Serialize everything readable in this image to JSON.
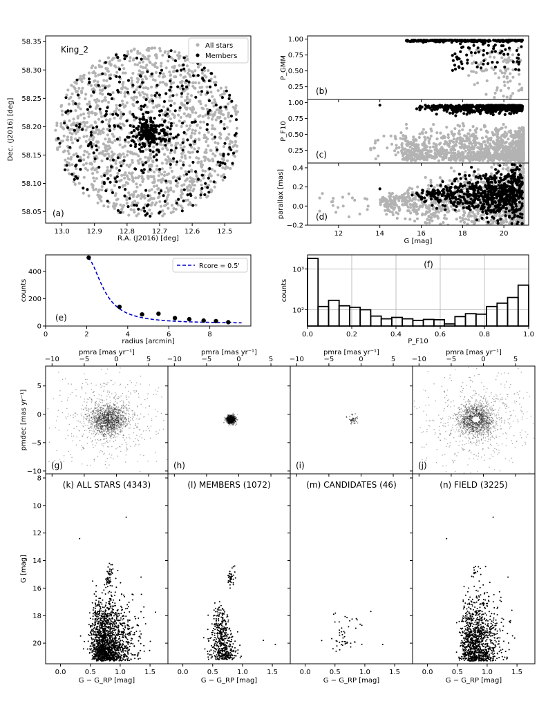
{
  "figure": {
    "cluster_name": "King_2"
  },
  "chart_data": [
    {
      "id": "a",
      "type": "scatter",
      "panel_label": "(a)",
      "title": "King_2",
      "xlabel": "R.A. (J2016) [deg]",
      "ylabel": "Dec. (J2016) [deg]",
      "xlim": [
        13.05,
        12.42
      ],
      "ylim": [
        58.03,
        58.36
      ],
      "xticks": [
        13.0,
        12.9,
        12.8,
        12.7,
        12.6,
        12.5
      ],
      "xtick_labels": [
        "13.0",
        "12.9",
        "12.8",
        "12.7",
        "12.6",
        "12.5"
      ],
      "yticks": [
        58.05,
        58.1,
        58.15,
        58.2,
        58.25,
        58.3,
        58.35
      ],
      "ytick_labels": [
        "58.05",
        "58.10",
        "58.15",
        "58.20",
        "58.25",
        "58.30",
        "58.35"
      ],
      "legend": [
        "All stars",
        "Members"
      ],
      "legend_position": "top-right",
      "field_center": [
        12.735,
        58.19
      ],
      "field_radius_deg": 0.15,
      "series": [
        {
          "name": "All stars",
          "color": "#b3b3b3",
          "count": 4343
        },
        {
          "name": "Members",
          "color": "#000000",
          "count": 1072
        }
      ]
    },
    {
      "id": "b",
      "type": "scatter",
      "panel_label": "(b)",
      "ylabel": "P_GMM",
      "xlim": [
        10.5,
        21.2
      ],
      "ylim": [
        0.05,
        1.05
      ],
      "yticks": [
        0.25,
        0.5,
        0.75,
        1.0
      ],
      "ytick_labels": [
        "0.25",
        "0.50",
        "0.75",
        "1.00"
      ]
    },
    {
      "id": "c",
      "type": "scatter",
      "panel_label": "(c)",
      "ylabel": "P_F10",
      "xlim": [
        10.5,
        21.2
      ],
      "ylim": [
        0.05,
        1.05
      ],
      "yticks": [
        0.25,
        0.5,
        0.75,
        1.0
      ],
      "ytick_labels": [
        "0.25",
        "0.50",
        "0.75",
        "1.00"
      ]
    },
    {
      "id": "d",
      "type": "scatter",
      "panel_label": "(d)",
      "ylabel": "parallax [mas]",
      "xlabel": "G [mag]",
      "xlim": [
        10.5,
        21.2
      ],
      "ylim": [
        -0.2,
        0.45
      ],
      "xticks": [
        12,
        14,
        16,
        18,
        20
      ],
      "xtick_labels": [
        "12",
        "14",
        "16",
        "18",
        "20"
      ],
      "yticks": [
        -0.2,
        0.0,
        0.2,
        0.4
      ],
      "ytick_labels": [
        "−0.2",
        "0.0",
        "0.2",
        "0.4"
      ]
    },
    {
      "id": "e",
      "type": "scatter",
      "panel_label": "(e)",
      "xlabel": "radius [arcmin]",
      "ylabel": "counts",
      "xlim": [
        0,
        10
      ],
      "ylim": [
        0,
        520
      ],
      "xticks": [
        0,
        2,
        4,
        6,
        8
      ],
      "xtick_labels": [
        "0",
        "2",
        "4",
        "6",
        "8"
      ],
      "yticks": [
        0,
        200,
        400
      ],
      "ytick_labels": [
        "0",
        "200",
        "400"
      ],
      "x": [
        2.1,
        3.6,
        4.7,
        5.5,
        6.3,
        7.0,
        7.7,
        8.3,
        8.9
      ],
      "y": [
        500,
        140,
        85,
        90,
        58,
        50,
        40,
        36,
        28
      ],
      "fit": {
        "label": "Rcore =   0.5'",
        "rcore": 0.5,
        "background": 18,
        "color": "#0000cc",
        "style": "dashed"
      },
      "legend_position": "top-right"
    },
    {
      "id": "f",
      "type": "bar",
      "panel_label": "(f)",
      "xlabel": "P_F10",
      "ylabel": "counts",
      "yscale": "log",
      "xlim": [
        0,
        1
      ],
      "ylim": [
        40,
        2200
      ],
      "xticks": [
        0.0,
        0.2,
        0.4,
        0.6,
        0.8,
        1.0
      ],
      "xtick_labels": [
        "0.0",
        "0.2",
        "0.4",
        "0.6",
        "0.8",
        "1.0"
      ],
      "ytick_labels": [
        "10²",
        "10³"
      ],
      "bin_width": 0.05,
      "values": [
        1800,
        120,
        170,
        125,
        115,
        100,
        70,
        60,
        65,
        60,
        55,
        58,
        57,
        45,
        68,
        80,
        78,
        120,
        145,
        200,
        400
      ],
      "grid": true
    },
    {
      "id": "g",
      "type": "scatter",
      "panel_label": "(g)",
      "stars": 4343,
      "spread": 1.9,
      "xlabel": "pmra [mas yr⁻¹]",
      "ylabel": "pmdec [mas yr⁻¹]",
      "xlim": [
        -11,
        8
      ],
      "ylim": [
        -10.5,
        8.5
      ],
      "center": [
        -1.2,
        -0.9
      ],
      "xticks": [
        -10,
        -5,
        0,
        5
      ],
      "xtick_labels": [
        "−10",
        "−5",
        "0",
        "5"
      ],
      "yticks": [
        -10,
        -5,
        0,
        5
      ],
      "ytick_labels": [
        "−10",
        "−5",
        "0",
        "5"
      ]
    },
    {
      "id": "h",
      "type": "scatter",
      "panel_label": "(h)",
      "stars": 1072,
      "spread": 0.35,
      "xlabel": "pmra [mas yr⁻¹]",
      "xlim": [
        -11,
        8
      ],
      "ylim": [
        -10.5,
        8.5
      ],
      "center": [
        -1.2,
        -0.9
      ],
      "xticks": [
        -10,
        -5,
        0,
        5
      ],
      "xtick_labels": [
        "−10",
        "−5",
        "0",
        "5"
      ]
    },
    {
      "id": "i",
      "type": "scatter",
      "panel_label": "(i)",
      "stars": 46,
      "spread": 0.4,
      "xlabel": "pmra [mas yr⁻¹]",
      "xlim": [
        -11,
        8
      ],
      "ylim": [
        -10.5,
        8.5
      ],
      "center": [
        -1.2,
        -0.9
      ],
      "xticks": [
        -10,
        -5,
        0,
        5
      ],
      "xtick_labels": [
        "−10",
        "−5",
        "0",
        "5"
      ]
    },
    {
      "id": "j",
      "type": "scatter",
      "panel_label": "(j)",
      "stars": 3225,
      "spread": 2.1,
      "hole": true,
      "xlabel": "pmra [mas yr⁻¹]",
      "xlim": [
        -11,
        8
      ],
      "ylim": [
        -10.5,
        8.5
      ],
      "center": [
        -1.2,
        -0.9
      ],
      "xticks": [
        -10,
        -5,
        0,
        5
      ],
      "xtick_labels": [
        "−10",
        "−5",
        "0",
        "5"
      ]
    },
    {
      "id": "k",
      "type": "scatter",
      "title": "(k) ALL STARS (4343)",
      "stars": 4343,
      "xlabel": "G − G_RP [mag]",
      "ylabel": "G [mag]",
      "xlim": [
        -0.25,
        1.8
      ],
      "ylim": [
        21.5,
        7.7
      ],
      "xticks": [
        0.0,
        0.5,
        1.0,
        1.5
      ],
      "xtick_labels": [
        "0.0",
        "0.5",
        "1.0",
        "1.5"
      ],
      "yticks": [
        8,
        10,
        12,
        14,
        16,
        18,
        20
      ],
      "ytick_labels": [
        "8",
        "10",
        "12",
        "14",
        "16",
        "18",
        "20"
      ]
    },
    {
      "id": "l",
      "type": "scatter",
      "title": "(l) MEMBERS (1072)",
      "stars": 1072,
      "xlabel": "G − G_RP [mag]",
      "xlim": [
        -0.25,
        1.8
      ],
      "ylim": [
        21.5,
        7.7
      ],
      "xticks": [
        0.0,
        0.5,
        1.0,
        1.5
      ],
      "xtick_labels": [
        "0.0",
        "0.5",
        "1.0",
        "1.5"
      ]
    },
    {
      "id": "m",
      "type": "scatter",
      "title": "(m) CANDIDATES (46)",
      "stars": 46,
      "xlabel": "G − G_RP [mag]",
      "xlim": [
        -0.25,
        1.8
      ],
      "ylim": [
        21.5,
        7.7
      ],
      "xticks": [
        0.0,
        0.5,
        1.0,
        1.5
      ],
      "xtick_labels": [
        "0.0",
        "0.5",
        "1.0",
        "1.5"
      ]
    },
    {
      "id": "n",
      "type": "scatter",
      "title": "(n) FIELD (3225)",
      "stars": 3225,
      "xlabel": "G − G_RP [mag]",
      "xlim": [
        -0.25,
        1.8
      ],
      "ylim": [
        21.5,
        7.7
      ],
      "xticks": [
        0.0,
        0.5,
        1.0,
        1.5
      ],
      "xtick_labels": [
        "0.0",
        "0.5",
        "1.0",
        "1.5"
      ]
    }
  ]
}
